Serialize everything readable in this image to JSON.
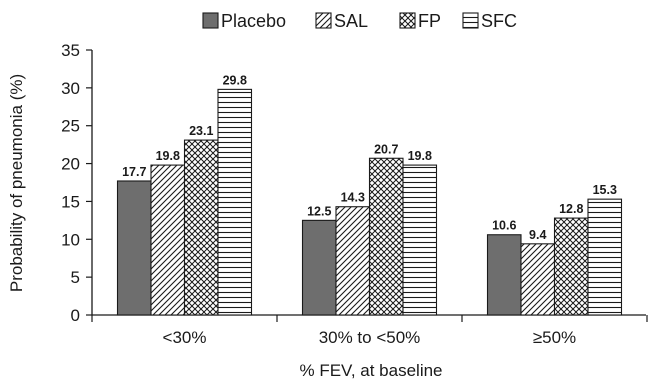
{
  "chart_data": {
    "type": "bar",
    "title": "",
    "xlabel": "% FEV, at baseline",
    "ylabel": "Probability of pneumonia (%)",
    "ylim": [
      0,
      35
    ],
    "yticks": [
      0,
      5,
      10,
      15,
      20,
      25,
      30,
      35
    ],
    "categories": [
      "<30%",
      "30% to <50%",
      "≥50%"
    ],
    "legend_position": "top",
    "series": [
      {
        "name": "Placebo",
        "pattern": "solid",
        "color": "#6e6e6e",
        "values": [
          17.7,
          12.5,
          10.6
        ],
        "labels": [
          "17.7",
          "12.5",
          "10.6"
        ]
      },
      {
        "name": "SAL",
        "pattern": "diagonal-hatch",
        "color": "#ffffff",
        "values": [
          19.8,
          14.3,
          9.4
        ],
        "labels": [
          "19.8",
          "14.3",
          "9.4"
        ]
      },
      {
        "name": "FP",
        "pattern": "cross-hatch",
        "color": "#ffffff",
        "values": [
          23.1,
          20.7,
          12.8
        ],
        "labels": [
          "23.1",
          "20.7",
          "12.8"
        ]
      },
      {
        "name": "SFC",
        "pattern": "horizontal-lines",
        "color": "#ffffff",
        "values": [
          29.8,
          19.8,
          15.3
        ],
        "labels": [
          "29.8",
          "19.8",
          "15.3"
        ]
      }
    ]
  }
}
